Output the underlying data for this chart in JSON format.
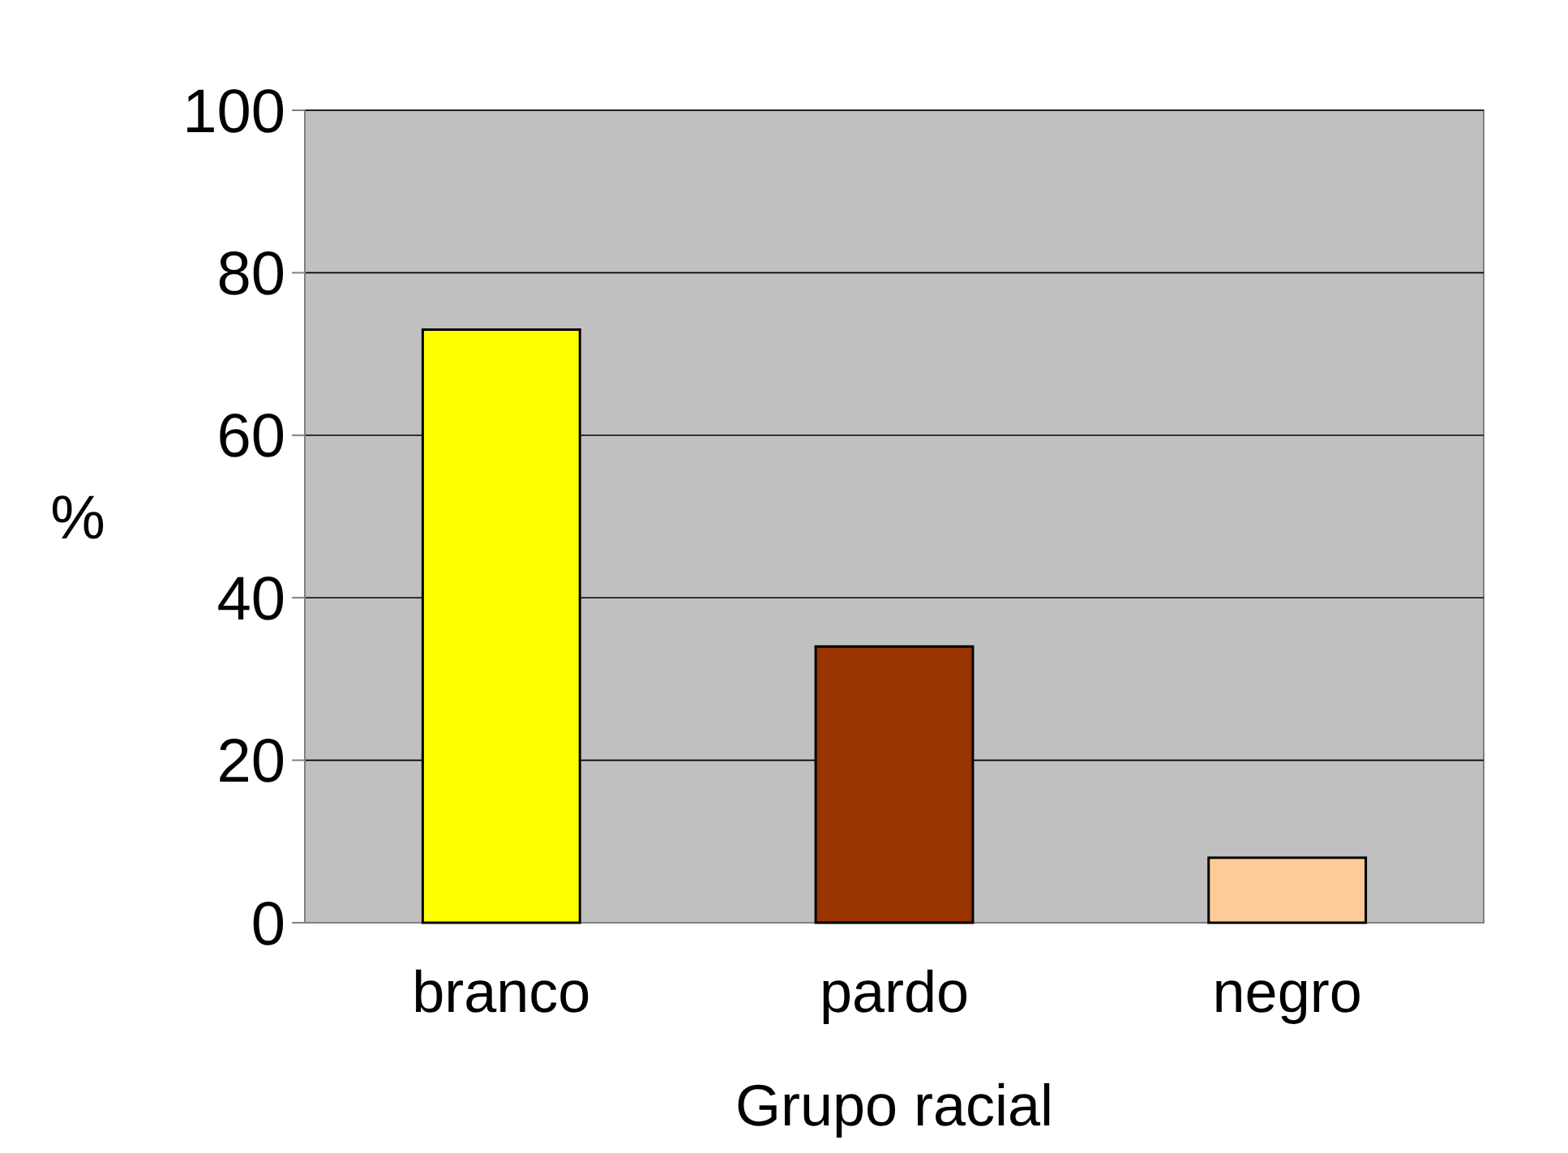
{
  "chart_data": {
    "type": "bar",
    "categories": [
      "branco",
      "pardo",
      "negro"
    ],
    "values": [
      73,
      34,
      8
    ],
    "colors": [
      "#ffff00",
      "#993300",
      "#ffcc99"
    ],
    "xlabel": "Grupo racial",
    "ylabel": "%",
    "ylim": [
      0,
      100
    ],
    "yticks": [
      0,
      20,
      40,
      60,
      80,
      100
    ],
    "grid": "y"
  }
}
